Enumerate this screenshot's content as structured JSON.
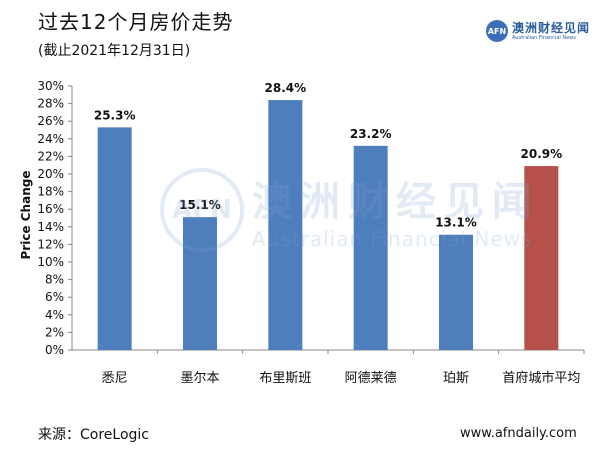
{
  "header": {
    "title": "过去12个月房价走势",
    "subtitle": "(截止2021年12月31日)"
  },
  "logo": {
    "mark": "AFN",
    "name_cn": "澳洲财经见闻",
    "name_en": "Australian Financial News"
  },
  "watermark": {
    "mark": "AFN",
    "text_cn": "澳洲财经见闻",
    "text_en": "Australian Financial News"
  },
  "chart_data": {
    "type": "bar",
    "title": "",
    "ylabel": "Price Change",
    "xlabel": "",
    "ylim": [
      0,
      30
    ],
    "y_ticks": [
      "0%",
      "2%",
      "4%",
      "6%",
      "8%",
      "10%",
      "12%",
      "14%",
      "16%",
      "18%",
      "20%",
      "22%",
      "24%",
      "26%",
      "28%",
      "30%"
    ],
    "categories": [
      "悉尼",
      "墨尔本",
      "布里斯班",
      "阿德莱德",
      "珀斯",
      "首府城市平均"
    ],
    "values": [
      25.3,
      15.1,
      28.4,
      23.2,
      13.1,
      20.9
    ],
    "data_labels": [
      "25.3%",
      "15.1%",
      "28.4%",
      "23.2%",
      "13.1%",
      "20.9%"
    ],
    "colors": [
      "#4f7ebd",
      "#4f7ebd",
      "#4f7ebd",
      "#4f7ebd",
      "#4f7ebd",
      "#b5504b"
    ],
    "grid": false,
    "legend": "none"
  },
  "footer": {
    "source": "来源：CoreLogic",
    "website": "www.afndaily.com"
  }
}
